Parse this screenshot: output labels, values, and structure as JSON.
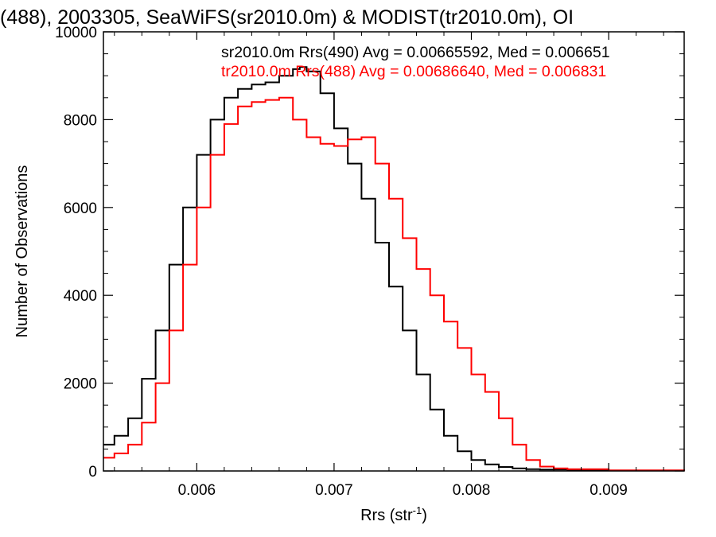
{
  "chart_data": {
    "type": "line",
    "title": "(488), 2003305, SeaWiFS(sr2010.0m) & MODIST(tr2010.0m), OI",
    "xlabel": "Rrs (str",
    "xlabel_sup": "-1",
    "xlabel_close": ")",
    "ylabel": "Number of Observations",
    "xlim": [
      0.00532,
      0.00955
    ],
    "ylim": [
      0,
      10000
    ],
    "x_ticks": [
      0.006,
      0.007,
      0.008,
      0.009
    ],
    "x_tick_labels": [
      "0.006",
      "0.007",
      "0.008",
      "0.009"
    ],
    "y_ticks": [
      0,
      2000,
      4000,
      6000,
      8000,
      10000
    ],
    "y_tick_labels": [
      "0",
      "2000",
      "4000",
      "6000",
      "8000",
      "10000"
    ],
    "grid": false,
    "legend_position": "top-right",
    "series": [
      {
        "name": "sr2010.0m Rrs(490) Avg = 0.00665592, Med = 0.006651",
        "color": "#000000",
        "step": true,
        "points": [
          [
            0.00532,
            600
          ],
          [
            0.0054,
            800
          ],
          [
            0.0055,
            1200
          ],
          [
            0.0056,
            2100
          ],
          [
            0.0057,
            3200
          ],
          [
            0.0058,
            4700
          ],
          [
            0.0059,
            6000
          ],
          [
            0.006,
            7200
          ],
          [
            0.0061,
            8000
          ],
          [
            0.0062,
            8500
          ],
          [
            0.0063,
            8700
          ],
          [
            0.0064,
            8800
          ],
          [
            0.0065,
            8850
          ],
          [
            0.0066,
            9000
          ],
          [
            0.0067,
            9150
          ],
          [
            0.00675,
            9200
          ],
          [
            0.0068,
            9100
          ],
          [
            0.0069,
            8600
          ],
          [
            0.007,
            7800
          ],
          [
            0.0071,
            7000
          ],
          [
            0.0072,
            6200
          ],
          [
            0.0073,
            5200
          ],
          [
            0.0074,
            4200
          ],
          [
            0.0075,
            3200
          ],
          [
            0.0076,
            2200
          ],
          [
            0.0077,
            1400
          ],
          [
            0.0078,
            800
          ],
          [
            0.0079,
            450
          ],
          [
            0.008,
            250
          ],
          [
            0.0081,
            150
          ],
          [
            0.0082,
            90
          ],
          [
            0.0083,
            60
          ],
          [
            0.0084,
            40
          ],
          [
            0.0085,
            30
          ],
          [
            0.0087,
            20
          ],
          [
            0.009,
            10
          ],
          [
            0.00955,
            5
          ]
        ]
      },
      {
        "name": "tr2010.0m Rrs(488) Avg = 0.00686640, Med = 0.006831",
        "color": "#ff0000",
        "step": true,
        "points": [
          [
            0.00532,
            300
          ],
          [
            0.0054,
            400
          ],
          [
            0.0055,
            600
          ],
          [
            0.0056,
            1100
          ],
          [
            0.0057,
            2000
          ],
          [
            0.0058,
            3200
          ],
          [
            0.0059,
            4700
          ],
          [
            0.006,
            6000
          ],
          [
            0.0061,
            7200
          ],
          [
            0.0062,
            7900
          ],
          [
            0.0063,
            8300
          ],
          [
            0.0064,
            8400
          ],
          [
            0.0065,
            8450
          ],
          [
            0.0066,
            8500
          ],
          [
            0.0067,
            8000
          ],
          [
            0.0068,
            7600
          ],
          [
            0.0069,
            7450
          ],
          [
            0.007,
            7400
          ],
          [
            0.0071,
            7550
          ],
          [
            0.0072,
            7600
          ],
          [
            0.0073,
            7000
          ],
          [
            0.0074,
            6200
          ],
          [
            0.0075,
            5300
          ],
          [
            0.0076,
            4600
          ],
          [
            0.0077,
            4000
          ],
          [
            0.0078,
            3400
          ],
          [
            0.0079,
            2800
          ],
          [
            0.008,
            2200
          ],
          [
            0.0081,
            1800
          ],
          [
            0.0082,
            1200
          ],
          [
            0.0083,
            600
          ],
          [
            0.0084,
            250
          ],
          [
            0.0085,
            100
          ],
          [
            0.0086,
            60
          ],
          [
            0.0087,
            40
          ],
          [
            0.009,
            15
          ],
          [
            0.00955,
            5
          ]
        ]
      }
    ]
  }
}
